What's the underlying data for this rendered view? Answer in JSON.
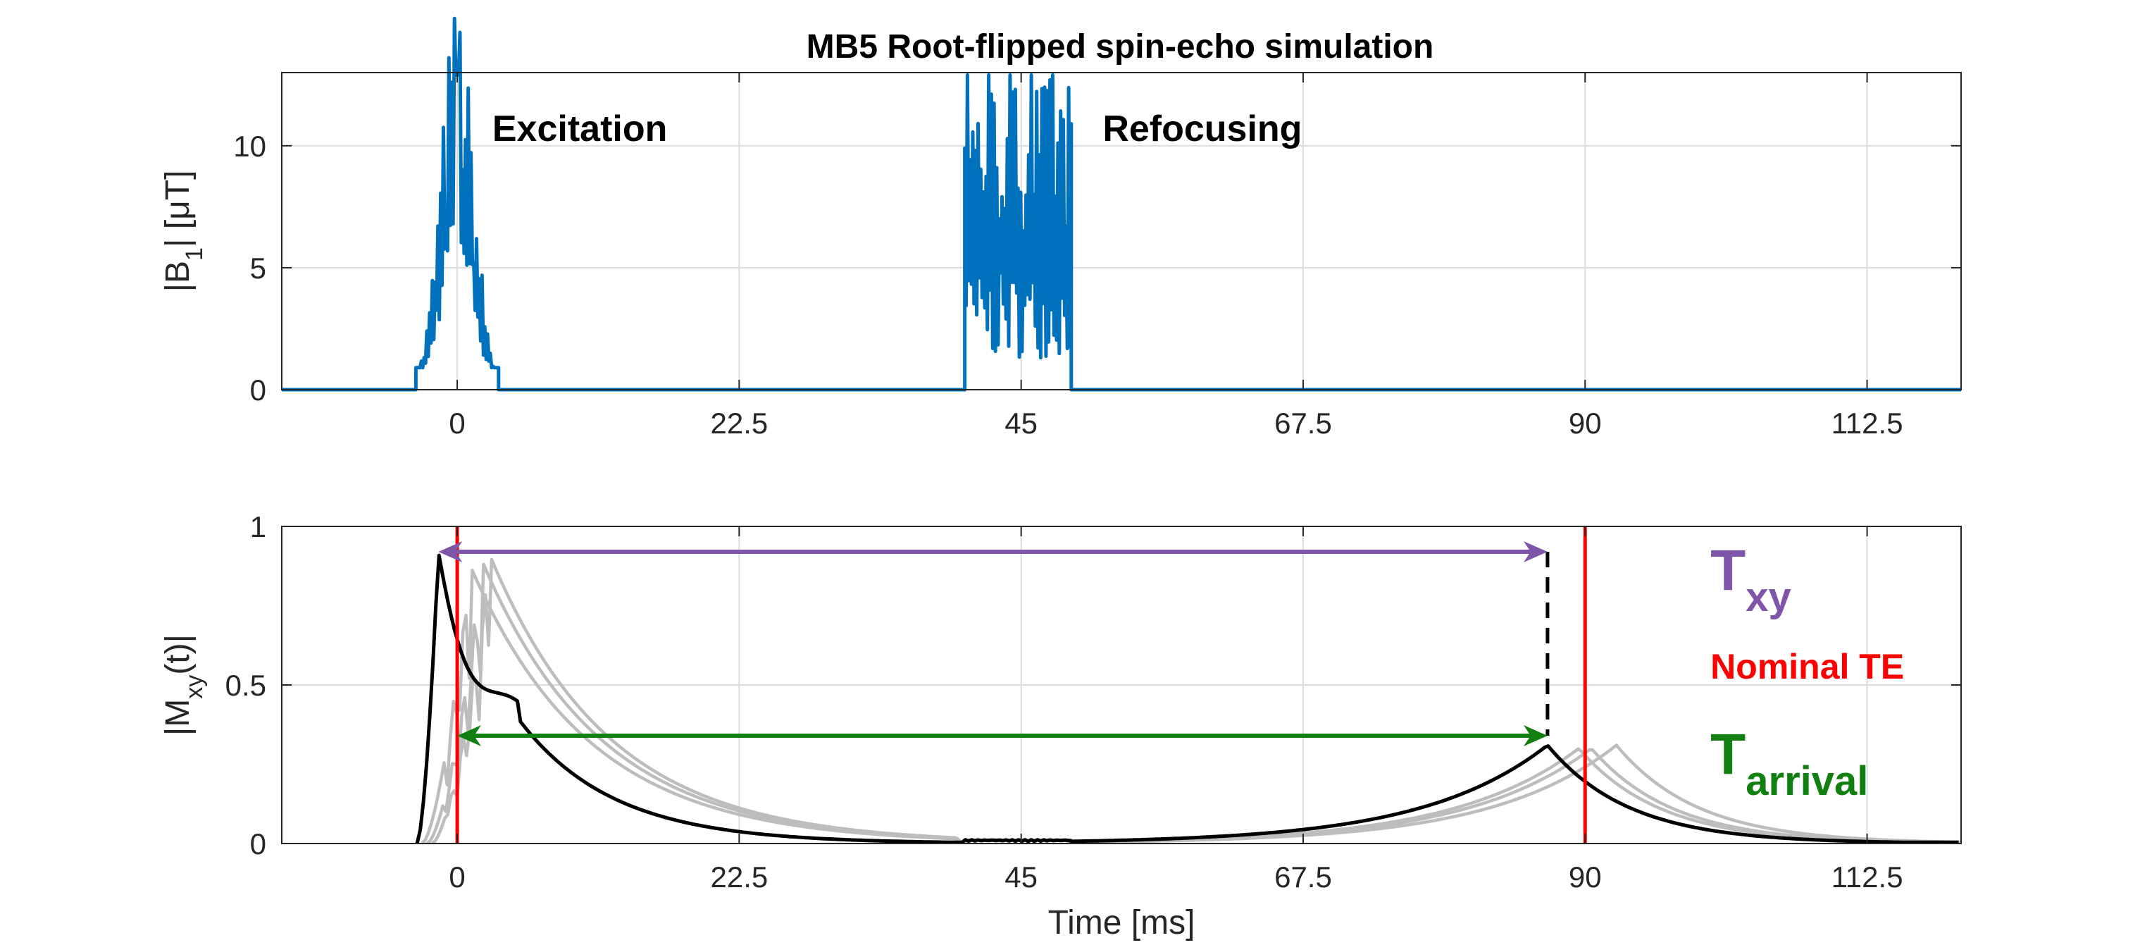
{
  "chart_data": [
    {
      "type": "line",
      "title": "MB5 Root-flipped spin-echo simulation",
      "xlabel": "",
      "ylabel": "|B₁| [μT]",
      "ylabel_main": "|B",
      "ylabel_sub": "1",
      "ylabel_rest": "| [μT]",
      "xlim": [
        -14,
        120
      ],
      "ylim": [
        0,
        13
      ],
      "xticks": [
        0,
        22.5,
        45,
        67.5,
        90,
        112.5
      ],
      "xtick_labels": [
        "0",
        "22.5",
        "45",
        "67.5",
        "90",
        "112.5"
      ],
      "yticks": [
        0,
        5,
        10
      ],
      "ytick_labels": [
        "0",
        "5",
        "10"
      ],
      "grid": true,
      "series": [
        {
          "color": "#0072BD",
          "pulses": [
            {
              "start": -3.3,
              "end": 3.3,
              "peak": 12.9,
              "shape": "excitation"
            },
            {
              "start": 40.5,
              "end": 49.0,
              "peak": 12.9,
              "shape": "refocusing"
            }
          ]
        }
      ],
      "annotations": [
        {
          "text": "Excitation",
          "x": 2.8,
          "y": 10.2
        },
        {
          "text": "Refocusing",
          "x": 51.5,
          "y": 10.2
        }
      ]
    },
    {
      "type": "line",
      "xlabel": "Time [ms]",
      "ylabel": "|Mxy(t)|",
      "ylabel_main": "|M",
      "ylabel_sub": "xy",
      "ylabel_rest": "(t)|",
      "xlim": [
        -14,
        120
      ],
      "ylim": [
        0,
        1
      ],
      "xticks": [
        0,
        22.5,
        45,
        67.5,
        90,
        112.5
      ],
      "xtick_labels": [
        "0",
        "22.5",
        "45",
        "67.5",
        "90",
        "112.5"
      ],
      "yticks": [
        0,
        0.5,
        1
      ],
      "ytick_labels": [
        "0",
        "0.5",
        "1"
      ],
      "grid": true,
      "nominal_te": 90,
      "series": [
        {
          "color": "#000000",
          "peak_time": -1.5,
          "peak_value": 0.92,
          "echo_time": 87,
          "echo_value": 0.31
        },
        {
          "color": "#bdbdbd",
          "peak_time": 1.0,
          "peak_value": 0.88,
          "echo_time": 89.5,
          "echo_value": 0.3
        },
        {
          "color": "#bdbdbd",
          "peak_time": 2.0,
          "peak_value": 0.89,
          "echo_time": 90.5,
          "echo_value": 0.3
        },
        {
          "color": "#bdbdbd",
          "peak_time": 2.6,
          "peak_value": 0.91,
          "echo_time": 92.5,
          "echo_value": 0.31
        }
      ],
      "txy_arrow": {
        "x1": -1.5,
        "x2": 87,
        "y": 0.92,
        "color": "#7E55A8"
      },
      "tarrival_arrow": {
        "x1": 0,
        "x2": 87,
        "y": 0.34,
        "color": "#118011"
      },
      "dashed_drop": {
        "x": 87,
        "y1": 0.92,
        "y2": 0.34
      },
      "annotations": [
        {
          "id": "txy",
          "main": "T",
          "sub": "xy",
          "color": "#7E55A8",
          "x": 100,
          "y": 0.8
        },
        {
          "id": "nominal-te",
          "main": "Nominal TE",
          "color": "#FF0000",
          "x": 100,
          "y": 0.52
        },
        {
          "id": "tarrival",
          "main": "T",
          "sub": "arrival",
          "color": "#118011",
          "x": 100,
          "y": 0.22
        }
      ]
    }
  ]
}
